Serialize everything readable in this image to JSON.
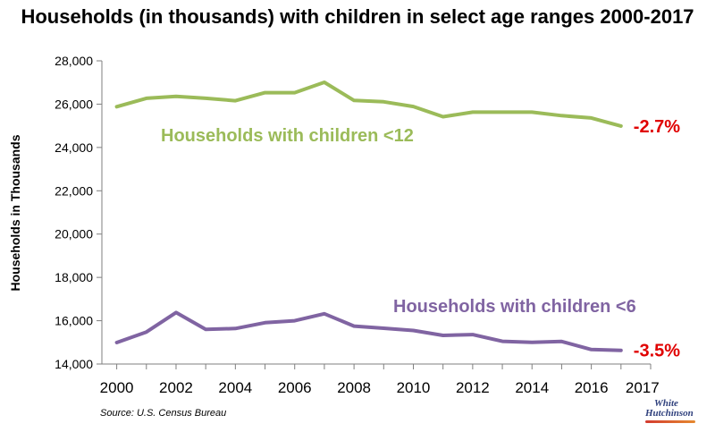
{
  "chart_data": {
    "type": "line",
    "title": "Households (in thousands) with children in select age ranges 2000-2017",
    "ylabel": "Households in Thousands",
    "xlabel": "",
    "x": [
      2000,
      2001,
      2002,
      2003,
      2004,
      2005,
      2006,
      2007,
      2008,
      2009,
      2010,
      2011,
      2012,
      2013,
      2014,
      2015,
      2016,
      2017
    ],
    "xticks": [
      "2000",
      "2002",
      "2004",
      "2006",
      "2008",
      "2010",
      "2012",
      "2014",
      "2016",
      "2017"
    ],
    "ylim": [
      14000,
      28000
    ],
    "yticks": [
      "14,000",
      "16,000",
      "18,000",
      "20,000",
      "22,000",
      "24,000",
      "26,000",
      "28,000"
    ],
    "grid": false,
    "series": [
      {
        "name": "Households with children <12",
        "color": "#9bbb59",
        "values": [
          25880,
          26270,
          26360,
          26270,
          26160,
          26530,
          26530,
          27010,
          26170,
          26110,
          25890,
          25420,
          25630,
          25630,
          25630,
          25470,
          25360,
          24990
        ],
        "end_label": "-2.7%"
      },
      {
        "name": "Households with children <6",
        "color": "#8064a2",
        "values": [
          14990,
          15480,
          16380,
          15600,
          15640,
          15910,
          16000,
          16320,
          15750,
          15650,
          15550,
          15320,
          15360,
          15050,
          15000,
          15040,
          14670,
          14630
        ],
        "end_label": "-3.5%"
      }
    ],
    "end_label_color": "#e00000",
    "source": "Source: U.S. Census Bureau"
  },
  "logo": {
    "line1": "White",
    "line2": "Hutchinson"
  }
}
